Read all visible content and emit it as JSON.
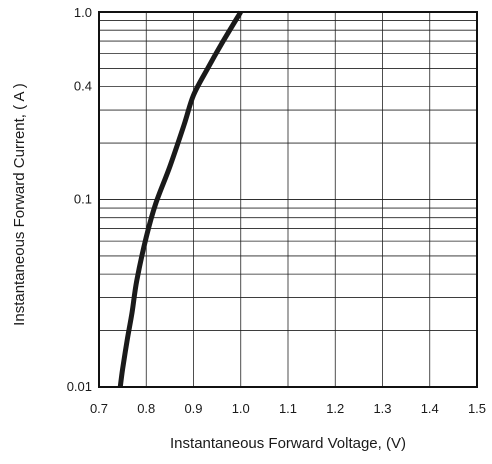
{
  "chart_data": {
    "type": "line",
    "title": "",
    "xlabel": "Instantaneous Forward Voltage, (V)",
    "ylabel": "Instantaneous Forward Current, ( A )",
    "x_scale": "linear",
    "y_scale": "log",
    "xlim": [
      0.7,
      1.5
    ],
    "ylim": [
      0.01,
      1.0
    ],
    "x_ticks": [
      0.7,
      0.8,
      0.9,
      1.0,
      1.1,
      1.2,
      1.3,
      1.4,
      1.5
    ],
    "x_tick_labels": [
      "0.7",
      "0.8",
      "0.9",
      "1.0",
      "1.1",
      "1.2",
      "1.3",
      "1.4",
      "1.5"
    ],
    "y_ticks": [
      0.01,
      0.1,
      0.4,
      1.0
    ],
    "y_tick_labels": [
      "0.01",
      "0.1",
      "0.4",
      "1.0"
    ],
    "grid": true,
    "legend": "none",
    "line_color": "#1a1a1a",
    "series": [
      {
        "x": [
          0.745,
          0.75,
          0.76,
          0.77,
          0.78,
          0.8,
          0.82,
          0.85,
          0.88,
          0.9,
          0.93,
          0.96,
          1.0
        ],
        "values": [
          0.01,
          0.0125,
          0.018,
          0.025,
          0.037,
          0.063,
          0.095,
          0.15,
          0.25,
          0.36,
          0.5,
          0.68,
          1.0
        ]
      }
    ]
  }
}
